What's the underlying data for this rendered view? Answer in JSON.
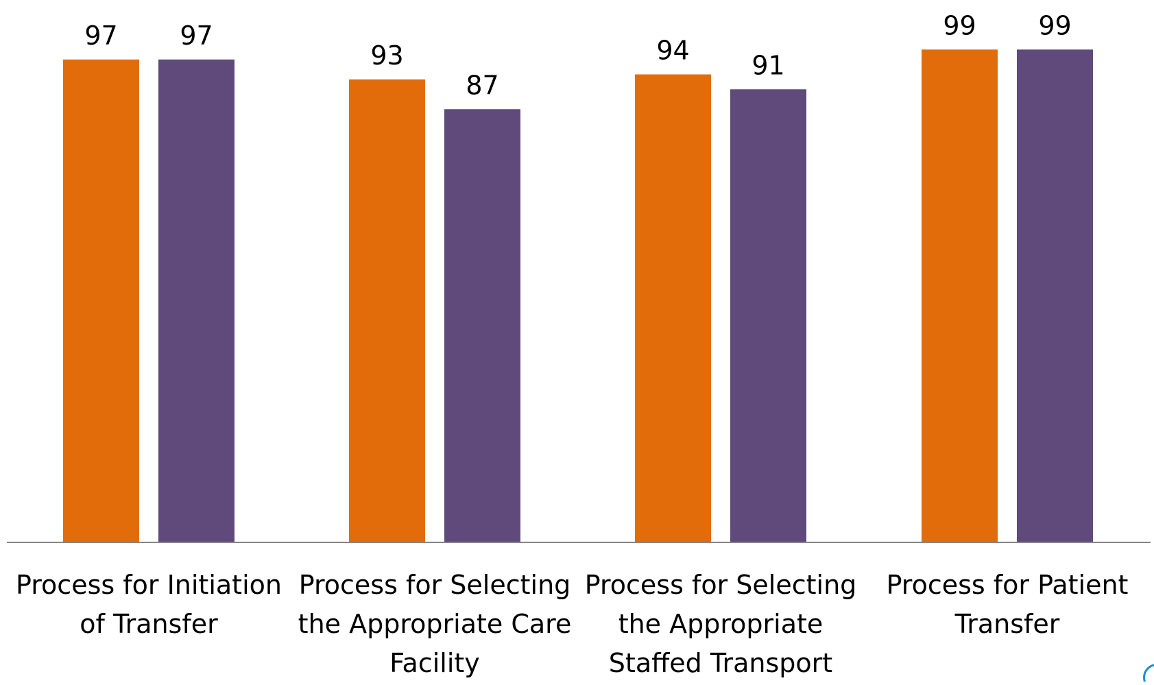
{
  "chart_data": {
    "type": "bar",
    "categories": [
      [
        "Process for Initiation",
        "of Transfer"
      ],
      [
        "Process for Selecting",
        "the Appropriate Care",
        "Facility"
      ],
      [
        "Process for Selecting",
        "the Appropriate",
        "Staffed Transport"
      ],
      [
        "Process for Patient",
        "Transfer"
      ]
    ],
    "series": [
      {
        "values": [
          97,
          93,
          94,
          99
        ],
        "color": "#e36c0a"
      },
      {
        "values": [
          97,
          87,
          91,
          99
        ],
        "color": "#604a7b"
      }
    ],
    "title": "",
    "xlabel": "",
    "ylabel": "",
    "ylim": [
      0,
      100
    ],
    "data_labels": true,
    "grid": false,
    "legend": "none"
  }
}
